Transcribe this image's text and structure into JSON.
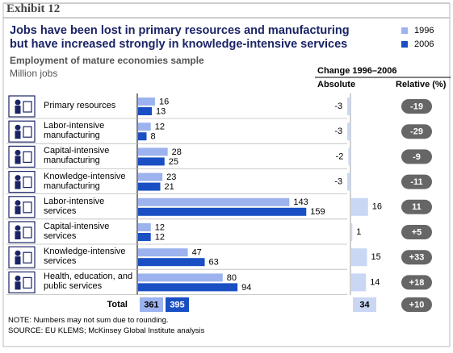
{
  "chart_data": {
    "type": "bar",
    "exhibit": "Exhibit 12",
    "title": "Jobs have been lost in primary resources and manufacturing but have increased strongly in knowledge-intensive services",
    "subtitle": "Employment of mature economies sample",
    "unit": "Million jobs",
    "categories": [
      "Primary resources",
      "Labor-intensive manufacturing",
      "Capital-intensive manufacturing",
      "Knowledge-intensive manufacturing",
      "Labor-intensive services",
      "Capital-intensive services",
      "Knowledge-intensive services",
      "Health, education, and public services"
    ],
    "series": [
      {
        "name": "1996",
        "color": "#9db3ef",
        "values": [
          16,
          12,
          28,
          23,
          143,
          12,
          47,
          80
        ]
      },
      {
        "name": "2006",
        "color": "#1a4fc4",
        "values": [
          13,
          8,
          25,
          21,
          159,
          12,
          63,
          94
        ]
      }
    ],
    "change_header": "Change 1996–2006",
    "absolute_header": "Absolute",
    "relative_header": "Relative (%)",
    "absolute": {
      "color": "#c9d7f5",
      "values": [
        -3,
        -3,
        -2,
        -3,
        16,
        1,
        15,
        14
      ]
    },
    "relative": {
      "color": "#666666",
      "values": [
        -19,
        -29,
        -9,
        -11,
        11,
        5,
        33,
        18
      ],
      "value_labels": [
        "-19",
        "-29",
        "-9",
        "-11",
        "11",
        "+5",
        "+33",
        "+18"
      ]
    },
    "total_label": "Total",
    "totals": [
      361,
      395
    ],
    "total_absolute": 34,
    "total_relative": {
      "value": 10,
      "label": "+10"
    },
    "notes": [
      "NOTE: Numbers may not sum due to rounding.",
      "SOURCE: EU KLEMS; McKinsey Global Institute analysis"
    ]
  }
}
